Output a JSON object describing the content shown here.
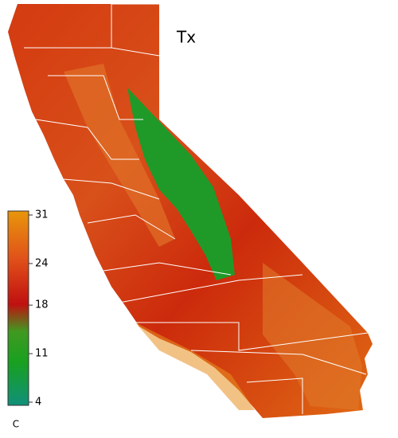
{
  "title": "Tx",
  "legend": {
    "unit": "C",
    "range": [
      4,
      31
    ],
    "ticks": [
      31,
      24,
      18,
      11,
      4
    ]
  }
}
